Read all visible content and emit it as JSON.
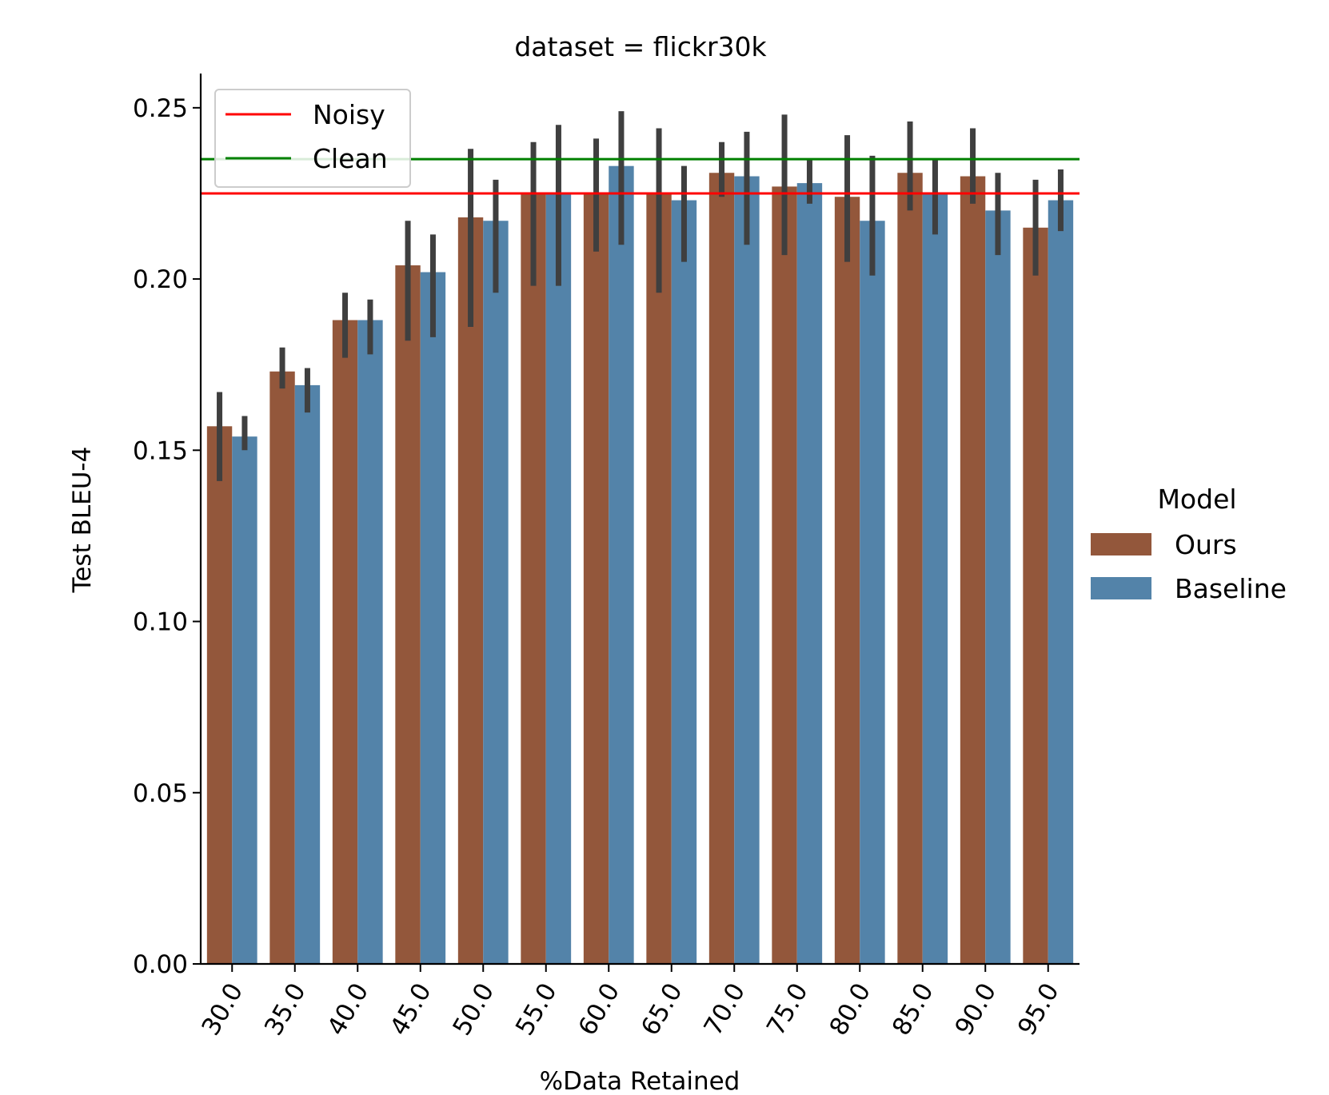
{
  "chart_data": {
    "type": "bar",
    "title": "dataset = flickr30k",
    "xlabel": "%Data Retained",
    "ylabel": "Test BLEU-4",
    "ylim": [
      0,
      0.26
    ],
    "yticks": [
      "0.00",
      "0.05",
      "0.10",
      "0.15",
      "0.20",
      "0.25"
    ],
    "categories": [
      "30.0",
      "35.0",
      "40.0",
      "45.0",
      "50.0",
      "55.0",
      "60.0",
      "65.0",
      "70.0",
      "75.0",
      "80.0",
      "85.0",
      "90.0",
      "95.0"
    ],
    "series": [
      {
        "name": "Ours",
        "color": "#93573b",
        "values": [
          0.157,
          0.173,
          0.188,
          0.204,
          0.218,
          0.225,
          0.225,
          0.225,
          0.231,
          0.227,
          0.224,
          0.231,
          0.23,
          0.215
        ],
        "err_low": [
          0.141,
          0.168,
          0.177,
          0.182,
          0.186,
          0.198,
          0.208,
          0.196,
          0.224,
          0.207,
          0.205,
          0.22,
          0.222,
          0.201
        ],
        "err_high": [
          0.167,
          0.18,
          0.196,
          0.217,
          0.238,
          0.24,
          0.241,
          0.244,
          0.24,
          0.248,
          0.242,
          0.246,
          0.244,
          0.229
        ]
      },
      {
        "name": "Baseline",
        "color": "#5383a9",
        "values": [
          0.154,
          0.169,
          0.188,
          0.202,
          0.217,
          0.225,
          0.233,
          0.223,
          0.23,
          0.228,
          0.217,
          0.225,
          0.22,
          0.223
        ],
        "err_low": [
          0.15,
          0.161,
          0.178,
          0.183,
          0.196,
          0.198,
          0.21,
          0.205,
          0.21,
          0.222,
          0.201,
          0.213,
          0.207,
          0.214
        ],
        "err_high": [
          0.16,
          0.174,
          0.194,
          0.213,
          0.229,
          0.245,
          0.249,
          0.233,
          0.243,
          0.235,
          0.236,
          0.235,
          0.231,
          0.232
        ]
      }
    ],
    "reference_lines": [
      {
        "name": "Noisy",
        "value": 0.225,
        "color": "#ff0000"
      },
      {
        "name": "Clean",
        "value": 0.235,
        "color": "#008000"
      }
    ],
    "legend_lines_placement": "top-left",
    "legend_model": {
      "title": "Model",
      "placement": "right"
    },
    "grid": false
  }
}
